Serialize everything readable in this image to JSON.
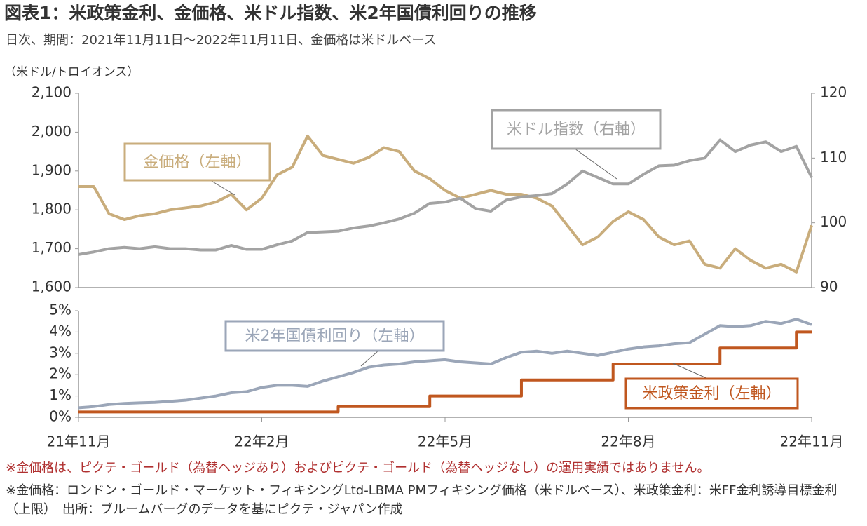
{
  "title": "図表1：米政策金利、金価格、米ドル指数、米2年国債利回りの推移",
  "subtitle": "日次、期間：2021年11月11日～2022年11月11日、金価格は米ドルベース",
  "notes": [
    "※金価格は、ピクテ・ゴールド（為替ヘッジあり）およびピクテ・ゴールド（為替ヘッジなし）の運用実績ではありません。",
    "※金価格：ロンドン・ゴールド・マーケット・フィキシングLtd-LBMA PMフィキシング価格（米ドルベース）、米政策金利：米FF金利誘導目標金利（上限）　出所：ブルームバーグのデータを基にピクテ・ジャパン作成"
  ],
  "chart_data": [
    {
      "type": "line",
      "y_label": "（米ドル/トロイオンス）",
      "ylim": [
        1600,
        2100
      ],
      "yticks": [
        {
          "value": 1600,
          "label": "1,600"
        },
        {
          "value": 1700,
          "label": "1,700"
        },
        {
          "value": 1800,
          "label": "1,800"
        },
        {
          "value": 1900,
          "label": "1,900"
        },
        {
          "value": 2000,
          "label": "2,000"
        },
        {
          "value": 2100,
          "label": "2,100"
        }
      ],
      "y2lim": [
        90,
        120
      ],
      "y2ticks": [
        90,
        100,
        110,
        120
      ],
      "series": [
        {
          "name": "金価格（左軸）",
          "color": "#c9ad7c",
          "values": [
            1860,
            1860,
            1790,
            1775,
            1785,
            1790,
            1800,
            1805,
            1810,
            1820,
            1840,
            1800,
            1830,
            1890,
            1910,
            1990,
            1940,
            1930,
            1920,
            1935,
            1960,
            1950,
            1900,
            1880,
            1850,
            1830,
            1840,
            1850,
            1840,
            1840,
            1830,
            1810,
            1760,
            1710,
            1730,
            1770,
            1795,
            1775,
            1730,
            1710,
            1720,
            1660,
            1650,
            1700,
            1670,
            1650,
            1660,
            1640,
            1760
          ]
        },
        {
          "name": "米ドル指数（右軸）",
          "color": "#a3a3a3",
          "axis": "y2",
          "values": [
            95.1,
            95.5,
            96.0,
            96.2,
            96.0,
            96.3,
            96.0,
            96.0,
            95.8,
            95.8,
            96.5,
            95.9,
            95.9,
            96.6,
            97.2,
            98.5,
            98.6,
            98.7,
            99.2,
            99.5,
            100.0,
            100.6,
            101.5,
            103.0,
            103.2,
            103.8,
            102.2,
            101.8,
            103.5,
            104.0,
            104.2,
            104.5,
            106.0,
            108.0,
            107.0,
            106.0,
            106.0,
            107.5,
            108.8,
            108.9,
            109.6,
            110.0,
            112.8,
            111.0,
            112.0,
            112.5,
            111.0,
            111.8,
            107.0
          ]
        }
      ]
    },
    {
      "type": "line",
      "categories": [
        "21年11月",
        null,
        null,
        null,
        null,
        null,
        null,
        null,
        null,
        null,
        null,
        null,
        "22年2月",
        null,
        null,
        null,
        null,
        null,
        null,
        null,
        null,
        null,
        null,
        null,
        "22年5月",
        null,
        null,
        null,
        null,
        null,
        null,
        null,
        null,
        null,
        null,
        null,
        "22年8月",
        null,
        null,
        null,
        null,
        null,
        null,
        null,
        null,
        null,
        null,
        null,
        "22年11月"
      ],
      "ylim": [
        0,
        5
      ],
      "yticks": [
        {
          "value": 0,
          "label": "0%"
        },
        {
          "value": 1,
          "label": "1%"
        },
        {
          "value": 2,
          "label": "2%"
        },
        {
          "value": 3,
          "label": "3%"
        },
        {
          "value": 4,
          "label": "4%"
        },
        {
          "value": 5,
          "label": "5%"
        }
      ],
      "series": [
        {
          "name": "米2年国債利回り（左軸）",
          "color": "#9ba6b8",
          "values": [
            0.45,
            0.5,
            0.6,
            0.65,
            0.68,
            0.7,
            0.75,
            0.8,
            0.9,
            1.0,
            1.15,
            1.2,
            1.4,
            1.5,
            1.5,
            1.45,
            1.7,
            1.9,
            2.1,
            2.35,
            2.45,
            2.5,
            2.6,
            2.65,
            2.7,
            2.6,
            2.55,
            2.5,
            2.8,
            3.05,
            3.1,
            3.0,
            3.1,
            3.0,
            2.9,
            3.05,
            3.2,
            3.3,
            3.35,
            3.45,
            3.5,
            3.9,
            4.3,
            4.25,
            4.3,
            4.5,
            4.4,
            4.6,
            4.35
          ]
        },
        {
          "name": "米政策金利（左軸）",
          "color": "#c0571f",
          "step": true,
          "values": [
            0.25,
            0.25,
            0.25,
            0.25,
            0.25,
            0.25,
            0.25,
            0.25,
            0.25,
            0.25,
            0.25,
            0.25,
            0.25,
            0.25,
            0.25,
            0.25,
            0.25,
            0.5,
            0.5,
            0.5,
            0.5,
            0.5,
            0.5,
            1.0,
            1.0,
            1.0,
            1.0,
            1.0,
            1.0,
            1.75,
            1.75,
            1.75,
            1.75,
            1.75,
            1.75,
            2.5,
            2.5,
            2.5,
            2.5,
            2.5,
            2.5,
            2.5,
            3.25,
            3.25,
            3.25,
            3.25,
            3.25,
            4.0,
            4.0
          ]
        }
      ]
    }
  ]
}
